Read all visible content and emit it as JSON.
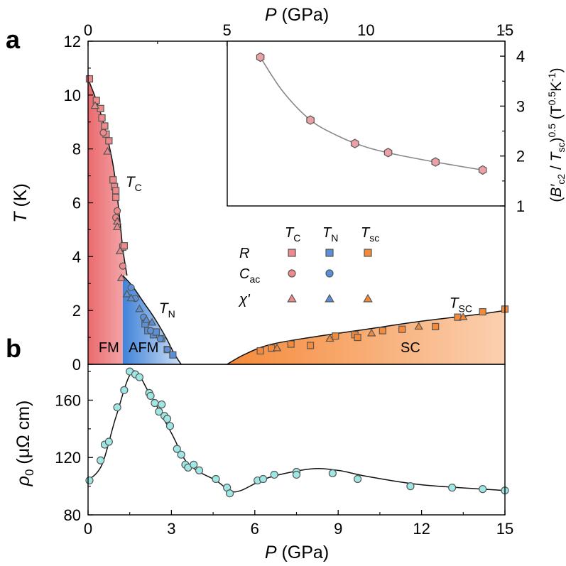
{
  "panel_labels": {
    "a": "a",
    "b": "b"
  },
  "chart_data": [
    {
      "id": "panel-a-phase-diagram",
      "type": "scatter",
      "top_axis": {
        "label_italic": "P",
        "label_unit": " (GPa)",
        "ticks": [
          "0",
          "5",
          "10",
          "15"
        ],
        "range": [
          0,
          15
        ]
      },
      "y_axis": {
        "label_italic": "T",
        "label_unit": " (K)",
        "ticks": [
          "0",
          "2",
          "4",
          "6",
          "8",
          "10",
          "12"
        ],
        "range": [
          0,
          12
        ]
      },
      "x_range": [
        0,
        15
      ],
      "regions": [
        {
          "name": "FM",
          "label": "FM",
          "color_from": "#ea6a6e",
          "color_to": "#f4aaad"
        },
        {
          "name": "AFM",
          "label": "AFM",
          "color_from": "#3f82d8",
          "color_to": "#cfe1f7"
        },
        {
          "name": "SC",
          "label": "SC",
          "color_from": "#f58a3a",
          "color_to": "#fbd0b0"
        }
      ],
      "boundaries": {
        "Tc": [
          [
            0,
            10.6
          ],
          [
            0.3,
            9.8
          ],
          [
            0.6,
            8.8
          ],
          [
            0.9,
            7.4
          ],
          [
            1.1,
            5.8
          ],
          [
            1.25,
            4.3
          ],
          [
            1.4,
            3.3
          ]
        ],
        "Tn": [
          [
            1.25,
            3.3
          ],
          [
            1.6,
            2.9
          ],
          [
            2.0,
            2.3
          ],
          [
            2.4,
            1.7
          ],
          [
            2.8,
            1.0
          ],
          [
            3.1,
            0.4
          ],
          [
            3.35,
            0
          ]
        ],
        "Tsc": [
          [
            5.0,
            0
          ],
          [
            5.6,
            0.35
          ],
          [
            6.5,
            0.72
          ],
          [
            8.0,
            1.0
          ],
          [
            10.0,
            1.3
          ],
          [
            12.0,
            1.6
          ],
          [
            14.0,
            1.85
          ],
          [
            15.0,
            2.0
          ]
        ]
      },
      "curve_labels": [
        {
          "name": "Tc",
          "main": "T",
          "sub": "C",
          "at": [
            1.35,
            6.6
          ]
        },
        {
          "name": "Tn",
          "main": "T",
          "sub": "N",
          "at": [
            2.55,
            1.9
          ]
        },
        {
          "name": "Tsc",
          "main": "T",
          "sub": "SC",
          "at": [
            13.0,
            2.1
          ]
        }
      ],
      "series": [
        {
          "name": "Tc (R)",
          "marker": "square",
          "color": "#ee8a8c",
          "points": [
            [
              0.05,
              10.6
            ],
            [
              0.3,
              9.8
            ],
            [
              0.45,
              9.5
            ],
            [
              0.5,
              9.15
            ],
            [
              0.6,
              8.85
            ],
            [
              0.65,
              8.55
            ],
            [
              0.75,
              8.3
            ],
            [
              0.9,
              6.85
            ],
            [
              0.95,
              6.6
            ],
            [
              1.0,
              6.45
            ],
            [
              1.0,
              6.2
            ],
            [
              1.25,
              4.35
            ],
            [
              1.3,
              4.4
            ]
          ]
        },
        {
          "name": "Tc (Cac)",
          "marker": "circle",
          "color": "#ee8a8c",
          "points": [
            [
              0.55,
              8.6
            ],
            [
              1.05,
              5.7
            ],
            [
              1.0,
              5.45
            ],
            [
              1.25,
              3.65
            ]
          ]
        },
        {
          "name": "Tc (chi)",
          "marker": "triangle",
          "color": "#ee8a8c",
          "points": [
            [
              0.25,
              9.6
            ],
            [
              0.7,
              7.9
            ],
            [
              1.05,
              5.3
            ],
            [
              1.05,
              5.1
            ],
            [
              1.15,
              4.2
            ],
            [
              1.2,
              3.2
            ]
          ]
        },
        {
          "name": "Tn (R)",
          "marker": "square",
          "color": "#5b8fd6",
          "points": [
            [
              2.05,
              1.5
            ],
            [
              2.15,
              1.25
            ],
            [
              2.35,
              1.1
            ],
            [
              2.45,
              1.2
            ],
            [
              2.65,
              0.95
            ],
            [
              2.85,
              0.55
            ],
            [
              3.05,
              0.35
            ]
          ]
        },
        {
          "name": "Tn (Cac)",
          "marker": "circle",
          "color": "#5b8fd6",
          "points": [
            [
              1.55,
              2.85
            ],
            [
              1.7,
              2.45
            ],
            [
              2.0,
              1.75
            ],
            [
              2.25,
              1.25
            ],
            [
              2.6,
              0.95
            ],
            [
              2.85,
              0.55
            ]
          ]
        },
        {
          "name": "Tn (chi)",
          "marker": "triangle",
          "color": "#5b8fd6",
          "points": [
            [
              1.4,
              2.6
            ],
            [
              1.55,
              2.45
            ],
            [
              1.85,
              2.05
            ],
            [
              2.1,
              1.65
            ],
            [
              2.3,
              1.55
            ]
          ]
        },
        {
          "name": "Tsc (R)",
          "marker": "square",
          "color": "#f58a3a",
          "points": [
            [
              6.2,
              0.5
            ],
            [
              6.6,
              0.6
            ],
            [
              7.3,
              0.75
            ],
            [
              8.0,
              0.7
            ],
            [
              8.9,
              1.05
            ],
            [
              9.6,
              1.1
            ],
            [
              9.7,
              1.0
            ],
            [
              10.6,
              1.25
            ],
            [
              11.3,
              1.3
            ],
            [
              12.5,
              1.4
            ],
            [
              13.3,
              1.75
            ],
            [
              14.2,
              1.95
            ],
            [
              15.0,
              2.05
            ]
          ]
        },
        {
          "name": "Tsc (chi)",
          "marker": "triangle",
          "color": "#f58a3a",
          "points": [
            [
              6.8,
              0.6
            ],
            [
              8.7,
              0.95
            ],
            [
              10.2,
              1.15
            ],
            [
              11.9,
              1.4
            ],
            [
              13.5,
              1.75
            ]
          ]
        }
      ],
      "legend": {
        "columns": [
          {
            "main": "T",
            "sub": "C"
          },
          {
            "main": "T",
            "sub": "N"
          },
          {
            "main": "T",
            "sub": "sc"
          }
        ],
        "rows": [
          {
            "label_main": "R",
            "label_sub": "",
            "marker": "square",
            "colors": [
              "#ee8a8c",
              "#5b8fd6",
              "#f58a3a"
            ]
          },
          {
            "label_main": "C",
            "label_sub": "ac",
            "marker": "circle",
            "colors": [
              "#ee8a8c",
              "#5b8fd6"
            ]
          },
          {
            "label_main": "χ'",
            "label_sub": "",
            "marker": "triangle",
            "colors": [
              "#ee8a8c",
              "#5b8fd6",
              "#f58a3a"
            ]
          }
        ]
      }
    },
    {
      "id": "panel-a-inset",
      "type": "scatter",
      "x_range": [
        5,
        15
      ],
      "y_range": [
        1,
        4.3
      ],
      "y_ticks": [
        "1",
        "2",
        "3",
        "4"
      ],
      "y_label": "(B′c2 / Tsc)^0.5 (T^0.5 K^-1)",
      "y_label_parts": {
        "open": "(",
        "b": "B′",
        "b_sub": "c2",
        "slash": " / ",
        "t": "T",
        "t_sub": "sc",
        "close": ")",
        "pow": "0.5",
        "unit_open": " (T",
        "unit_pow1": "0.5",
        "unit_k": "K",
        "unit_pow2": "-1",
        "unit_close": ")"
      },
      "marker": "hexagon",
      "color": "#eaa0a4",
      "points": [
        [
          6.2,
          3.98
        ],
        [
          8.0,
          2.72
        ],
        [
          9.6,
          2.25
        ],
        [
          10.8,
          2.07
        ],
        [
          12.5,
          1.88
        ],
        [
          14.2,
          1.72
        ]
      ],
      "fit": [
        [
          6.2,
          3.98
        ],
        [
          7.0,
          3.3
        ],
        [
          8.0,
          2.72
        ],
        [
          9.0,
          2.4
        ],
        [
          10.0,
          2.18
        ],
        [
          11.0,
          2.04
        ],
        [
          12.0,
          1.93
        ],
        [
          13.0,
          1.83
        ],
        [
          14.2,
          1.72
        ]
      ]
    },
    {
      "id": "panel-b-resistivity",
      "type": "scatter",
      "x_axis": {
        "label_italic": "P",
        "label_unit": " (GPa)",
        "ticks": [
          "0",
          "3",
          "6",
          "9",
          "12",
          "15"
        ],
        "range": [
          0,
          15
        ]
      },
      "y_axis": {
        "label_main": "ρ",
        "label_sub": "0",
        "label_unit": " (μΩ cm)",
        "ticks": [
          "80",
          "120",
          "160"
        ],
        "range": [
          80,
          185
        ]
      },
      "color": "#9de8e4",
      "points": [
        [
          0.05,
          104
        ],
        [
          0.45,
          118
        ],
        [
          0.6,
          129
        ],
        [
          0.75,
          131
        ],
        [
          1.05,
          155
        ],
        [
          1.3,
          167
        ],
        [
          1.5,
          180
        ],
        [
          1.7,
          178
        ],
        [
          1.85,
          176
        ],
        [
          2.2,
          165
        ],
        [
          2.25,
          163
        ],
        [
          2.4,
          158
        ],
        [
          2.55,
          152
        ],
        [
          2.65,
          157
        ],
        [
          2.75,
          149
        ],
        [
          2.85,
          147
        ],
        [
          2.95,
          142
        ],
        [
          3.2,
          126
        ],
        [
          3.35,
          122
        ],
        [
          3.5,
          115
        ],
        [
          3.6,
          113
        ],
        [
          3.8,
          115
        ],
        [
          4.0,
          111
        ],
        [
          4.6,
          105
        ],
        [
          5.0,
          99
        ],
        [
          5.1,
          95
        ],
        [
          6.1,
          104
        ],
        [
          6.3,
          105
        ],
        [
          6.7,
          108
        ],
        [
          7.5,
          110
        ],
        [
          7.5,
          108
        ],
        [
          8.8,
          109
        ],
        [
          9.7,
          105
        ],
        [
          11.6,
          100
        ],
        [
          13.1,
          99
        ],
        [
          14.2,
          98
        ],
        [
          15.0,
          97
        ]
      ],
      "fit": [
        [
          0.0,
          104
        ],
        [
          0.5,
          115
        ],
        [
          1.0,
          148
        ],
        [
          1.6,
          180
        ],
        [
          2.2,
          165
        ],
        [
          3.0,
          137
        ],
        [
          3.5,
          118
        ],
        [
          4.0,
          110
        ],
        [
          4.6,
          104
        ],
        [
          5.1,
          97
        ],
        [
          5.5,
          97
        ],
        [
          6.5,
          106
        ],
        [
          8.0,
          112
        ],
        [
          9.0,
          111
        ],
        [
          10.0,
          107
        ],
        [
          12.0,
          101
        ],
        [
          15.0,
          97
        ]
      ]
    }
  ]
}
